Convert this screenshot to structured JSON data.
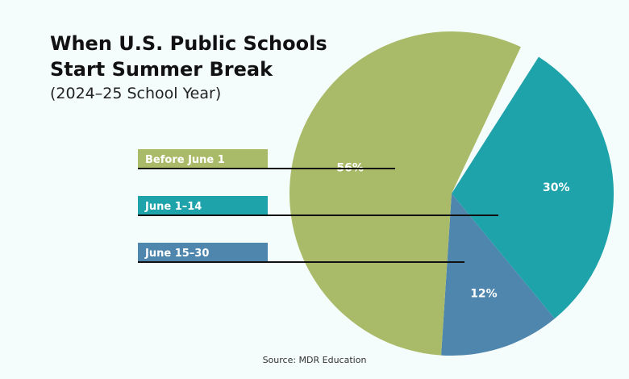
{
  "title_lines": [
    "When U.S. Public Schools",
    "Start Summer Break"
  ],
  "subtitle": "(2024–25 School Year)",
  "source": "Source: MDR Education",
  "colors": {
    "background": "#f5fcfc",
    "before_june_1": "#a9bb69",
    "june_1_14": "#1fa3aa",
    "june_15_30": "#4f86ad",
    "leader_line": "#111111"
  },
  "chart_data": {
    "type": "pie",
    "categories": [
      "Before June 1",
      "June 1–14",
      "June 15–30"
    ],
    "values": [
      56,
      30,
      12
    ],
    "value_labels": [
      "56%",
      "30%",
      "12%"
    ],
    "title": "When U.S. Public Schools Start Summer Break",
    "subtitle": "(2024–25 School Year)",
    "legend": "left, with leader lines"
  }
}
